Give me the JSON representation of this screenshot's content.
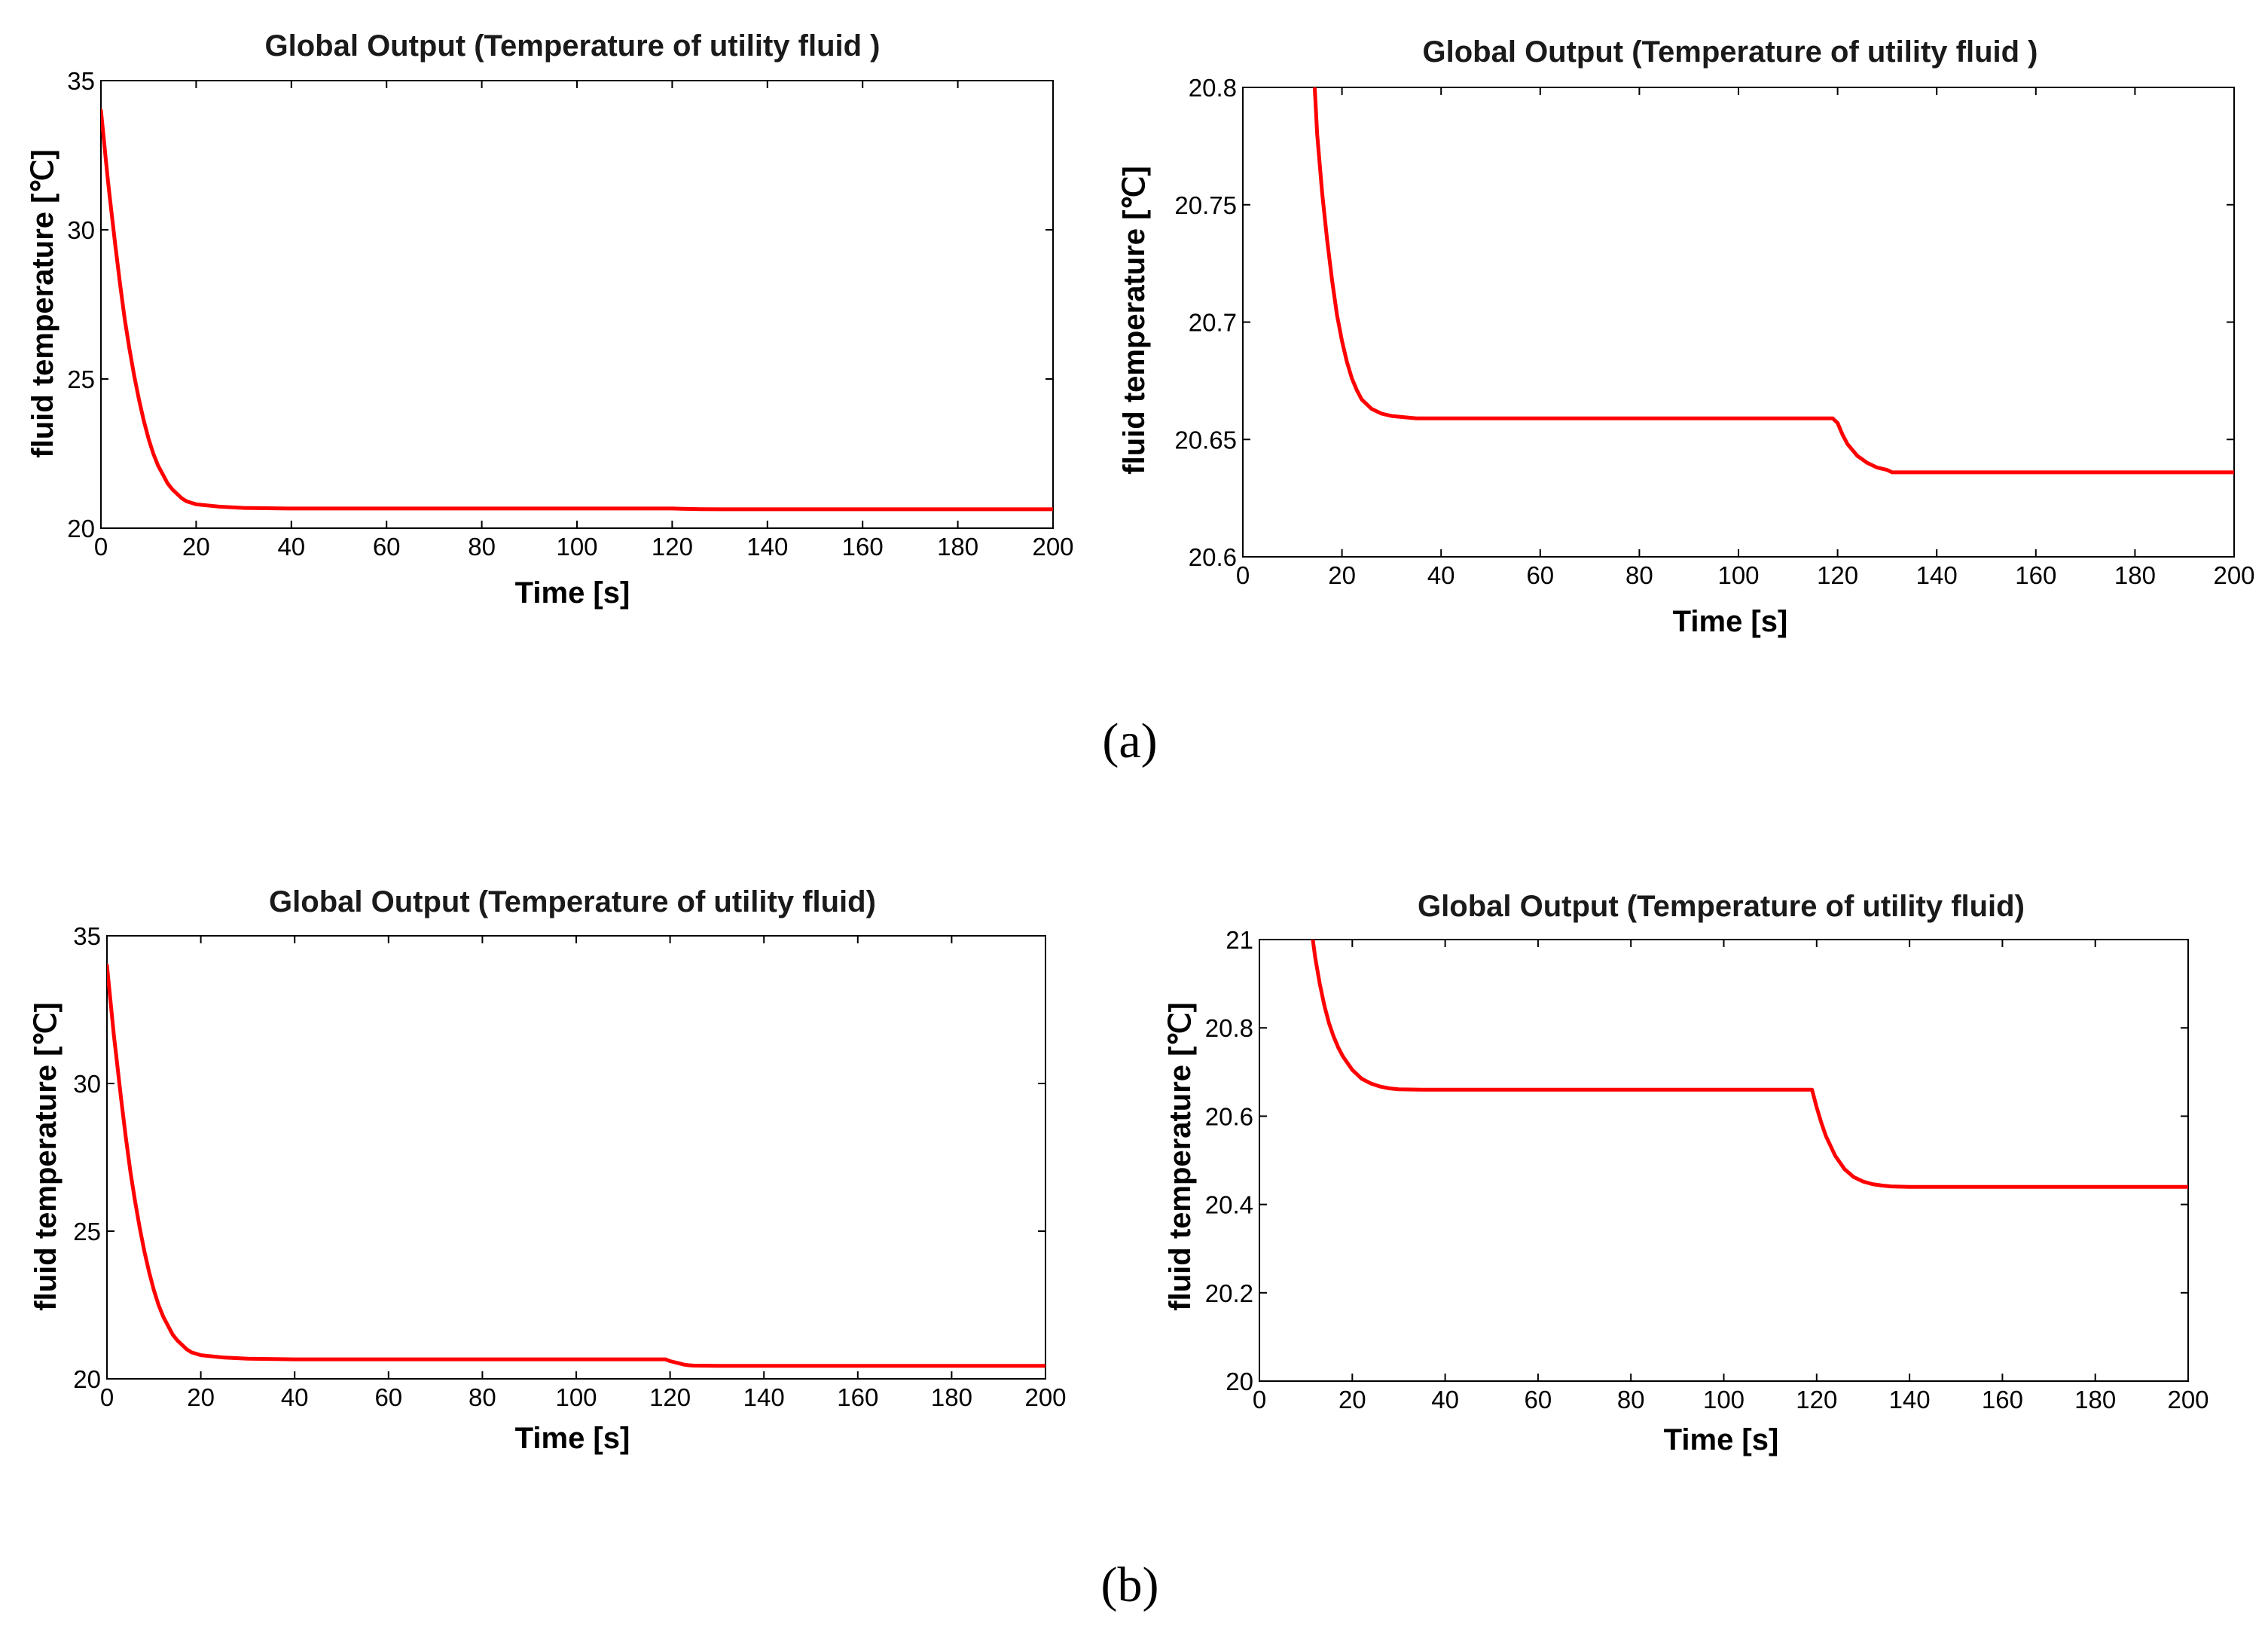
{
  "colors": {
    "series": "#ff0000",
    "axis": "#000000"
  },
  "captions": {
    "a": "(a)",
    "b": "(b)"
  },
  "chart_data": [
    {
      "id": "a-left",
      "type": "line",
      "title": "Global Output (Temperature of utility fluid )",
      "xlabel": "Time [s]",
      "ylabel": "fluid temperature [℃]",
      "xlim": [
        0,
        200
      ],
      "ylim": [
        20,
        35
      ],
      "xticks": [
        "0",
        "20",
        "40",
        "60",
        "80",
        "100",
        "120",
        "140",
        "160",
        "180",
        "200"
      ],
      "xtick_values": [
        0,
        20,
        40,
        60,
        80,
        100,
        120,
        140,
        160,
        180,
        200
      ],
      "yticks": [
        "20",
        "25",
        "30",
        "35"
      ],
      "ytick_values": [
        20,
        25,
        30,
        35
      ],
      "series": [
        {
          "name": "utility fluid temperature",
          "x": [
            0,
            0.5,
            1,
            1.5,
            2,
            3,
            4,
            5,
            6,
            7,
            8,
            9,
            10,
            11,
            12,
            13,
            14,
            15,
            16,
            17,
            18,
            20,
            25,
            30,
            40,
            60,
            80,
            100,
            119,
            120,
            122,
            124,
            126,
            130,
            140,
            160,
            180,
            200
          ],
          "y": [
            34.0,
            33.2,
            32.4,
            31.6,
            30.9,
            29.5,
            28.2,
            27.0,
            26.0,
            25.1,
            24.3,
            23.6,
            23.0,
            22.5,
            22.1,
            21.8,
            21.5,
            21.3,
            21.15,
            21.0,
            20.9,
            20.8,
            20.72,
            20.68,
            20.66,
            20.66,
            20.66,
            20.66,
            20.66,
            20.66,
            20.65,
            20.645,
            20.64,
            20.635,
            20.635,
            20.635,
            20.635,
            20.635
          ]
        }
      ]
    },
    {
      "id": "a-right",
      "type": "line",
      "title": "Global Output (Temperature of utility fluid )",
      "xlabel": "Time [s]",
      "ylabel": "fluid temperature [℃]",
      "xlim": [
        0,
        200
      ],
      "ylim": [
        20.6,
        20.8
      ],
      "xticks": [
        "0",
        "20",
        "40",
        "60",
        "80",
        "100",
        "120",
        "140",
        "160",
        "180",
        "200"
      ],
      "xtick_values": [
        0,
        20,
        40,
        60,
        80,
        100,
        120,
        140,
        160,
        180,
        200
      ],
      "yticks": [
        "20.6",
        "20.65",
        "20.7",
        "20.75",
        "20.8"
      ],
      "ytick_values": [
        20.6,
        20.65,
        20.7,
        20.75,
        20.8
      ],
      "series": [
        {
          "name": "utility fluid temperature",
          "x": [
            14.5,
            15,
            16,
            17,
            18,
            19,
            20,
            21,
            22,
            23,
            24,
            26,
            28,
            30,
            35,
            40,
            60,
            80,
            100,
            119,
            120,
            121,
            122,
            124,
            126,
            128,
            130,
            131,
            140,
            160,
            180,
            200
          ],
          "y": [
            20.8,
            20.78,
            20.755,
            20.735,
            20.718,
            20.703,
            20.692,
            20.683,
            20.676,
            20.671,
            20.667,
            20.663,
            20.661,
            20.66,
            20.659,
            20.659,
            20.659,
            20.659,
            20.659,
            20.659,
            20.657,
            20.652,
            20.648,
            20.643,
            20.64,
            20.638,
            20.637,
            20.636,
            20.636,
            20.636,
            20.636,
            20.636
          ]
        }
      ]
    },
    {
      "id": "b-left",
      "type": "line",
      "title": "Global Output (Temperature of utility fluid)",
      "xlabel": "Time [s]",
      "ylabel": "fluid temperature [℃]",
      "xlim": [
        0,
        200
      ],
      "ylim": [
        20,
        35
      ],
      "xticks": [
        "0",
        "20",
        "40",
        "60",
        "80",
        "100",
        "120",
        "140",
        "160",
        "180",
        "200"
      ],
      "xtick_values": [
        0,
        20,
        40,
        60,
        80,
        100,
        120,
        140,
        160,
        180,
        200
      ],
      "yticks": [
        "20",
        "25",
        "30",
        "35"
      ],
      "ytick_values": [
        20,
        25,
        30,
        35
      ],
      "series": [
        {
          "name": "utility fluid temperature",
          "x": [
            0,
            0.5,
            1,
            1.5,
            2,
            3,
            4,
            5,
            6,
            7,
            8,
            9,
            10,
            11,
            12,
            13,
            14,
            15,
            16,
            17,
            18,
            20,
            25,
            30,
            40,
            60,
            80,
            100,
            118,
            119,
            120,
            121,
            122,
            123,
            124,
            125,
            130,
            140,
            160,
            180,
            200
          ],
          "y": [
            34.0,
            33.2,
            32.4,
            31.6,
            30.9,
            29.5,
            28.2,
            27.0,
            26.0,
            25.1,
            24.3,
            23.6,
            23.0,
            22.5,
            22.1,
            21.8,
            21.5,
            21.3,
            21.15,
            21.0,
            20.9,
            20.8,
            20.72,
            20.68,
            20.66,
            20.66,
            20.66,
            20.66,
            20.66,
            20.66,
            20.6,
            20.56,
            20.52,
            20.48,
            20.46,
            20.45,
            20.44,
            20.44,
            20.44,
            20.44,
            20.44
          ]
        }
      ]
    },
    {
      "id": "b-right",
      "type": "line",
      "title": "Global Output (Temperature of utility fluid)",
      "xlabel": "Time [s]",
      "ylabel": "fluid temperature [℃]",
      "xlim": [
        0,
        200
      ],
      "ylim": [
        20,
        21
      ],
      "xticks": [
        "0",
        "20",
        "40",
        "60",
        "80",
        "100",
        "120",
        "140",
        "160",
        "180",
        "200"
      ],
      "xtick_values": [
        0,
        20,
        40,
        60,
        80,
        100,
        120,
        140,
        160,
        180,
        200
      ],
      "yticks": [
        "20",
        "20.2",
        "20.4",
        "20.6",
        "20.8",
        "21"
      ],
      "ytick_values": [
        20,
        20.2,
        20.4,
        20.6,
        20.8,
        21
      ],
      "series": [
        {
          "name": "utility fluid temperature",
          "x": [
            11.5,
            12,
            13,
            14,
            15,
            16,
            17,
            18,
            19,
            20,
            22,
            24,
            26,
            28,
            30,
            35,
            40,
            60,
            80,
            100,
            119,
            120,
            121,
            122,
            124,
            126,
            128,
            130,
            132,
            134,
            136,
            140,
            160,
            180,
            200
          ],
          "y": [
            21.0,
            20.96,
            20.9,
            20.85,
            20.81,
            20.78,
            20.755,
            20.735,
            20.72,
            20.705,
            20.685,
            20.674,
            20.667,
            20.663,
            20.661,
            20.66,
            20.66,
            20.66,
            20.66,
            20.66,
            20.66,
            20.62,
            20.585,
            20.555,
            20.51,
            20.48,
            20.462,
            20.452,
            20.446,
            20.443,
            20.441,
            20.44,
            20.44,
            20.44,
            20.44
          ]
        }
      ]
    }
  ]
}
